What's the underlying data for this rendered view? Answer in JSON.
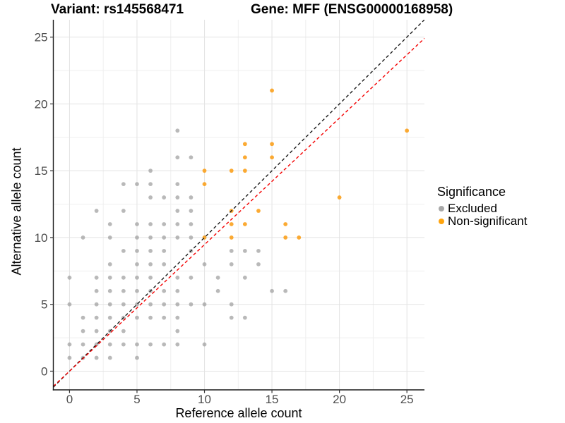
{
  "titles": {
    "variant": "Variant: rs145568471",
    "gene": "Gene: MFF (ENSG00000168958)"
  },
  "axes": {
    "x_label": "Reference allele count",
    "y_label": "Alternative allele count"
  },
  "legend": {
    "title": "Significance",
    "items": [
      {
        "label": "Excluded",
        "color": "#A8A8A8"
      },
      {
        "label": "Non-significant",
        "color": "#FFA40D"
      }
    ]
  },
  "chart_data": {
    "type": "scatter",
    "title": "Variant: rs145568471 | Gene: MFF (ENSG00000168958)",
    "xlabel": "Reference allele count",
    "ylabel": "Alternative allele count",
    "xlim": [
      -1.2,
      26.3
    ],
    "ylim": [
      -1.4,
      26.3
    ],
    "x_ticks": [
      0,
      5,
      10,
      15,
      20,
      25
    ],
    "y_ticks": [
      0,
      5,
      10,
      15,
      20,
      25
    ],
    "x_minor_ticks": [
      2.5,
      7.5,
      12.5,
      17.5,
      22.5
    ],
    "y_minor_ticks": [
      2.5,
      7.5,
      12.5,
      17.5,
      22.5
    ],
    "grid": true,
    "legend_position": "right",
    "reference_lines": [
      {
        "name": "identity",
        "slope": 1.0,
        "intercept": 0,
        "color": "#1A1A1A",
        "dashed": true
      },
      {
        "name": "expected-ratio",
        "slope": 0.947,
        "intercept": 0,
        "color": "#F40000",
        "dashed": true
      }
    ],
    "series": [
      {
        "name": "Excluded",
        "color": "#9E9E9E",
        "opacity": 0.72,
        "points": [
          [
            0,
            1
          ],
          [
            1,
            1
          ],
          [
            2,
            1
          ],
          [
            3,
            1
          ],
          [
            5,
            1
          ],
          [
            0,
            2
          ],
          [
            1,
            2
          ],
          [
            2,
            2
          ],
          [
            3,
            2
          ],
          [
            4,
            2
          ],
          [
            5,
            2
          ],
          [
            6,
            2
          ],
          [
            7,
            2
          ],
          [
            8,
            2
          ],
          [
            10,
            2
          ],
          [
            1,
            3
          ],
          [
            2,
            3
          ],
          [
            3,
            3
          ],
          [
            4,
            3
          ],
          [
            8,
            3
          ],
          [
            1,
            4
          ],
          [
            2,
            4
          ],
          [
            3,
            4
          ],
          [
            4,
            4
          ],
          [
            5,
            4
          ],
          [
            6,
            4
          ],
          [
            7,
            4
          ],
          [
            8,
            4
          ],
          [
            12,
            4
          ],
          [
            13,
            4
          ],
          [
            0,
            5
          ],
          [
            2,
            5
          ],
          [
            3,
            5
          ],
          [
            4,
            5
          ],
          [
            5,
            5
          ],
          [
            6,
            5
          ],
          [
            7,
            5
          ],
          [
            8,
            5
          ],
          [
            9,
            5
          ],
          [
            10,
            5
          ],
          [
            12,
            5
          ],
          [
            2,
            6
          ],
          [
            3,
            6
          ],
          [
            4,
            6
          ],
          [
            5,
            6
          ],
          [
            6,
            6
          ],
          [
            7,
            6
          ],
          [
            8,
            6
          ],
          [
            11,
            6
          ],
          [
            15,
            6
          ],
          [
            16,
            6
          ],
          [
            0,
            7
          ],
          [
            2,
            7
          ],
          [
            3,
            7
          ],
          [
            4,
            7
          ],
          [
            5,
            7
          ],
          [
            6,
            7
          ],
          [
            8,
            7
          ],
          [
            9,
            7
          ],
          [
            11,
            7
          ],
          [
            13,
            7
          ],
          [
            3,
            8
          ],
          [
            5,
            8
          ],
          [
            6,
            8
          ],
          [
            7,
            8
          ],
          [
            10,
            8
          ],
          [
            12,
            8
          ],
          [
            14,
            8
          ],
          [
            4,
            9
          ],
          [
            5,
            9
          ],
          [
            6,
            9
          ],
          [
            7,
            9
          ],
          [
            9,
            9
          ],
          [
            12,
            9
          ],
          [
            13,
            9
          ],
          [
            14,
            9
          ],
          [
            1,
            10
          ],
          [
            3,
            10
          ],
          [
            5,
            10
          ],
          [
            6,
            10
          ],
          [
            7,
            10
          ],
          [
            8,
            10
          ],
          [
            9,
            10
          ],
          [
            3,
            11
          ],
          [
            5,
            11
          ],
          [
            6,
            11
          ],
          [
            7,
            11
          ],
          [
            8,
            11
          ],
          [
            9,
            11
          ],
          [
            2,
            12
          ],
          [
            4,
            12
          ],
          [
            8,
            12
          ],
          [
            9,
            12
          ],
          [
            6,
            13
          ],
          [
            7,
            13
          ],
          [
            8,
            13
          ],
          [
            9,
            13
          ],
          [
            4,
            14
          ],
          [
            5,
            14
          ],
          [
            6,
            14
          ],
          [
            8,
            14
          ],
          [
            6,
            15
          ],
          [
            8,
            16
          ],
          [
            9,
            16
          ],
          [
            8,
            18
          ]
        ]
      },
      {
        "name": "Non-significant",
        "color": "#FB9E17",
        "opacity": 0.88,
        "points": [
          [
            10,
            10
          ],
          [
            12,
            10
          ],
          [
            16,
            10
          ],
          [
            17,
            10
          ],
          [
            12,
            11
          ],
          [
            13,
            11
          ],
          [
            16,
            11
          ],
          [
            12,
            12
          ],
          [
            14,
            12
          ],
          [
            20,
            13
          ],
          [
            10,
            14
          ],
          [
            10,
            15
          ],
          [
            12,
            15
          ],
          [
            13,
            15
          ],
          [
            13,
            16
          ],
          [
            15,
            16
          ],
          [
            13,
            17
          ],
          [
            15,
            17
          ],
          [
            25,
            18
          ],
          [
            15,
            21
          ]
        ]
      }
    ]
  }
}
